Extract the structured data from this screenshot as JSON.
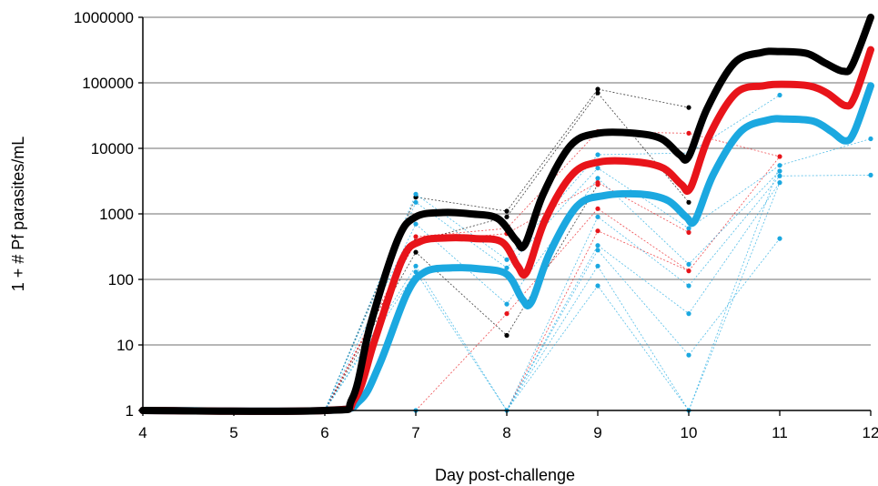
{
  "chart_data": {
    "type": "line",
    "title": "",
    "xlabel": "Day post-challenge",
    "ylabel": "1 + # Pf parasites/mL",
    "x_scale": "linear",
    "y_scale": "log",
    "xlim": [
      4,
      12
    ],
    "ylim": [
      1,
      1000000
    ],
    "x_ticks": [
      "4",
      "5",
      "6",
      "7",
      "8",
      "9",
      "10",
      "11",
      "12"
    ],
    "y_ticks": [
      "1",
      "10",
      "100",
      "1000",
      "10000",
      "100000",
      "1000000"
    ],
    "grid": "horizontal",
    "legend": "none",
    "colors": {
      "upper": "#000000",
      "middle": "#e8141a",
      "lower": "#1ba8e0"
    },
    "series": [
      {
        "color": "#000000",
        "style": "thick",
        "x": [
          4,
          6,
          6.3,
          6.5,
          6.8,
          7,
          7.3,
          7.6,
          7.9,
          8.1,
          8.2,
          8.4,
          8.7,
          9,
          9.4,
          9.7,
          9.9,
          10,
          10.2,
          10.5,
          10.8,
          11,
          11.3,
          11.5,
          11.7,
          11.8,
          12
        ],
        "y": [
          1,
          1,
          1.5,
          20,
          400,
          900,
          1050,
          1000,
          850,
          400,
          340,
          2000,
          11000,
          17000,
          17000,
          14000,
          8000,
          7500,
          40000,
          200000,
          290000,
          300000,
          280000,
          200000,
          150000,
          190000,
          1000000
        ]
      },
      {
        "color": "#e8141a",
        "style": "thick",
        "x": [
          4,
          6,
          6.33,
          6.55,
          6.85,
          7.05,
          7.35,
          7.65,
          7.95,
          8.12,
          8.22,
          8.42,
          8.72,
          9.02,
          9.42,
          9.72,
          9.92,
          10.02,
          10.22,
          10.52,
          10.82,
          11.02,
          11.32,
          11.52,
          11.72,
          11.82,
          12
        ],
        "y": [
          1,
          1,
          1.5,
          12,
          200,
          380,
          430,
          420,
          370,
          160,
          130,
          800,
          4000,
          6200,
          6200,
          5000,
          2800,
          2500,
          15000,
          70000,
          90000,
          95000,
          90000,
          70000,
          45000,
          60000,
          320000
        ]
      },
      {
        "color": "#1ba8e0",
        "style": "thick",
        "x": [
          4,
          6,
          6.38,
          6.6,
          6.9,
          7.1,
          7.4,
          7.7,
          8,
          8.17,
          8.27,
          8.47,
          8.77,
          9.07,
          9.47,
          9.77,
          9.97,
          10.07,
          10.27,
          10.57,
          10.87,
          11.07,
          11.37,
          11.57,
          11.72,
          11.82,
          12
        ],
        "y": [
          1,
          1,
          1.4,
          5,
          60,
          130,
          150,
          145,
          120,
          50,
          45,
          250,
          1300,
          1900,
          2000,
          1600,
          900,
          800,
          4000,
          18000,
          27000,
          28000,
          26000,
          18000,
          13000,
          18000,
          90000
        ]
      }
    ],
    "individual_points": [
      {
        "x": 7,
        "y": 1800,
        "color": "#000000"
      },
      {
        "x": 7,
        "y": 2000,
        "color": "#1ba8e0"
      },
      {
        "x": 7,
        "y": 1500,
        "color": "#1ba8e0"
      },
      {
        "x": 7,
        "y": 700,
        "color": "#1ba8e0"
      },
      {
        "x": 7,
        "y": 450,
        "color": "#e8141a"
      },
      {
        "x": 7,
        "y": 380,
        "color": "#000000"
      },
      {
        "x": 7,
        "y": 260,
        "color": "#000000"
      },
      {
        "x": 7,
        "y": 160,
        "color": "#1ba8e0"
      },
      {
        "x": 7,
        "y": 130,
        "color": "#1ba8e0"
      },
      {
        "x": 7,
        "y": 1,
        "color": "#1ba8e0"
      },
      {
        "x": 8,
        "y": 1100,
        "color": "#000000"
      },
      {
        "x": 8,
        "y": 900,
        "color": "#000000"
      },
      {
        "x": 8,
        "y": 600,
        "color": "#e8141a"
      },
      {
        "x": 8,
        "y": 500,
        "color": "#e8141a"
      },
      {
        "x": 8,
        "y": 200,
        "color": "#1ba8e0"
      },
      {
        "x": 8,
        "y": 150,
        "color": "#1ba8e0"
      },
      {
        "x": 8,
        "y": 42,
        "color": "#1ba8e0"
      },
      {
        "x": 8,
        "y": 30,
        "color": "#e8141a"
      },
      {
        "x": 8,
        "y": 14,
        "color": "#000000"
      },
      {
        "x": 8,
        "y": 1,
        "color": "#1ba8e0"
      },
      {
        "x": 9,
        "y": 80000,
        "color": "#000000"
      },
      {
        "x": 9,
        "y": 70000,
        "color": "#000000"
      },
      {
        "x": 9,
        "y": 18000,
        "color": "#e8141a"
      },
      {
        "x": 9,
        "y": 8000,
        "color": "#1ba8e0"
      },
      {
        "x": 9,
        "y": 5000,
        "color": "#1ba8e0"
      },
      {
        "x": 9,
        "y": 3500,
        "color": "#1ba8e0"
      },
      {
        "x": 9,
        "y": 3000,
        "color": "#e8141a"
      },
      {
        "x": 9,
        "y": 2800,
        "color": "#e8141a"
      },
      {
        "x": 9,
        "y": 1200,
        "color": "#e8141a"
      },
      {
        "x": 9,
        "y": 900,
        "color": "#1ba8e0"
      },
      {
        "x": 9,
        "y": 550,
        "color": "#e8141a"
      },
      {
        "x": 9,
        "y": 330,
        "color": "#1ba8e0"
      },
      {
        "x": 9,
        "y": 280,
        "color": "#1ba8e0"
      },
      {
        "x": 9,
        "y": 160,
        "color": "#1ba8e0"
      },
      {
        "x": 9,
        "y": 80,
        "color": "#1ba8e0"
      },
      {
        "x": 10,
        "y": 42000,
        "color": "#000000"
      },
      {
        "x": 10,
        "y": 17000,
        "color": "#e8141a"
      },
      {
        "x": 10,
        "y": 8500,
        "color": "#1ba8e0"
      },
      {
        "x": 10,
        "y": 1500,
        "color": "#000000"
      },
      {
        "x": 10,
        "y": 600,
        "color": "#1ba8e0"
      },
      {
        "x": 10,
        "y": 520,
        "color": "#e8141a"
      },
      {
        "x": 10,
        "y": 170,
        "color": "#1ba8e0"
      },
      {
        "x": 10,
        "y": 135,
        "color": "#e8141a"
      },
      {
        "x": 10,
        "y": 80,
        "color": "#1ba8e0"
      },
      {
        "x": 10,
        "y": 30,
        "color": "#1ba8e0"
      },
      {
        "x": 10,
        "y": 7,
        "color": "#1ba8e0"
      },
      {
        "x": 10,
        "y": 1,
        "color": "#1ba8e0"
      },
      {
        "x": 11,
        "y": 65000,
        "color": "#1ba8e0"
      },
      {
        "x": 11,
        "y": 7500,
        "color": "#e8141a"
      },
      {
        "x": 11,
        "y": 5500,
        "color": "#1ba8e0"
      },
      {
        "x": 11,
        "y": 4500,
        "color": "#1ba8e0"
      },
      {
        "x": 11,
        "y": 3800,
        "color": "#1ba8e0"
      },
      {
        "x": 11,
        "y": 3000,
        "color": "#1ba8e0"
      },
      {
        "x": 11,
        "y": 420,
        "color": "#1ba8e0"
      },
      {
        "x": 12,
        "y": 14000,
        "color": "#1ba8e0"
      },
      {
        "x": 12,
        "y": 3900,
        "color": "#1ba8e0"
      }
    ],
    "individual_lines": [
      {
        "color": "#000000",
        "x": [
          6,
          7,
          8,
          9,
          10
        ],
        "y": [
          1,
          1800,
          1100,
          80000,
          42000
        ]
      },
      {
        "color": "#000000",
        "x": [
          6,
          7,
          8,
          9,
          10
        ],
        "y": [
          1,
          380,
          900,
          70000,
          1500
        ]
      },
      {
        "color": "#000000",
        "x": [
          6,
          7,
          8,
          9
        ],
        "y": [
          1,
          260,
          14,
          2800
        ]
      },
      {
        "color": "#e8141a",
        "x": [
          6,
          7,
          8,
          9,
          10,
          11
        ],
        "y": [
          1,
          450,
          600,
          18000,
          17000,
          7500
        ]
      },
      {
        "color": "#e8141a",
        "x": [
          6,
          7,
          8,
          9,
          10
        ],
        "y": [
          1,
          380,
          500,
          3000,
          520
        ]
      },
      {
        "color": "#e8141a",
        "x": [
          7,
          8,
          9,
          10,
          11
        ],
        "y": [
          1,
          30,
          1200,
          135,
          7500
        ]
      },
      {
        "color": "#e8141a",
        "x": [
          7,
          8,
          9,
          10
        ],
        "y": [
          1,
          1,
          550,
          135
        ]
      },
      {
        "color": "#1ba8e0",
        "x": [
          6,
          7,
          8,
          9,
          10,
          11
        ],
        "y": [
          1,
          2000,
          200,
          8000,
          8500,
          65000
        ]
      },
      {
        "color": "#1ba8e0",
        "x": [
          6,
          7,
          8,
          9,
          10,
          11,
          12
        ],
        "y": [
          1,
          1500,
          150,
          5000,
          600,
          5500,
          14000
        ]
      },
      {
        "color": "#1ba8e0",
        "x": [
          6,
          7,
          8,
          9,
          10,
          11
        ],
        "y": [
          1,
          700,
          42,
          3500,
          170,
          4500
        ]
      },
      {
        "color": "#1ba8e0",
        "x": [
          6,
          7,
          8,
          9,
          10,
          11,
          12
        ],
        "y": [
          1,
          160,
          1,
          900,
          80,
          3800,
          3900
        ]
      },
      {
        "color": "#1ba8e0",
        "x": [
          6,
          7,
          8,
          9,
          10,
          11
        ],
        "y": [
          1,
          130,
          1,
          330,
          30,
          3000
        ]
      },
      {
        "color": "#1ba8e0",
        "x": [
          7,
          8,
          9,
          10,
          11
        ],
        "y": [
          1,
          1,
          280,
          7,
          420
        ]
      },
      {
        "color": "#1ba8e0",
        "x": [
          7,
          8,
          9,
          10,
          11
        ],
        "y": [
          1,
          1,
          160,
          1,
          3000
        ]
      },
      {
        "color": "#1ba8e0",
        "x": [
          7,
          8,
          9,
          10,
          11
        ],
        "y": [
          1,
          1,
          80,
          1,
          5500
        ]
      }
    ]
  }
}
